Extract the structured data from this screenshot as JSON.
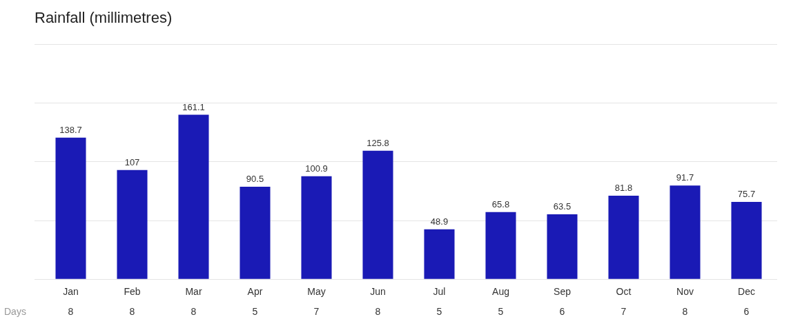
{
  "chart_data": {
    "type": "bar",
    "title": "Rainfall (millimetres)",
    "categories": [
      "Jan",
      "Feb",
      "Mar",
      "Apr",
      "May",
      "Jun",
      "Jul",
      "Aug",
      "Sep",
      "Oct",
      "Nov",
      "Dec"
    ],
    "values": [
      138.7,
      107.0,
      161.1,
      90.5,
      100.9,
      125.8,
      48.9,
      65.8,
      63.5,
      81.8,
      91.7,
      75.7
    ],
    "color": "#1a1ab5",
    "days_label": "Days",
    "days": [
      8,
      8,
      8,
      5,
      7,
      8,
      5,
      5,
      6,
      7,
      8,
      6
    ],
    "ylim": [
      0,
      230
    ],
    "yticks": [
      0,
      57.5,
      115,
      172.5,
      230
    ],
    "grid": true,
    "data_labels": true,
    "tick_labels": "x"
  }
}
